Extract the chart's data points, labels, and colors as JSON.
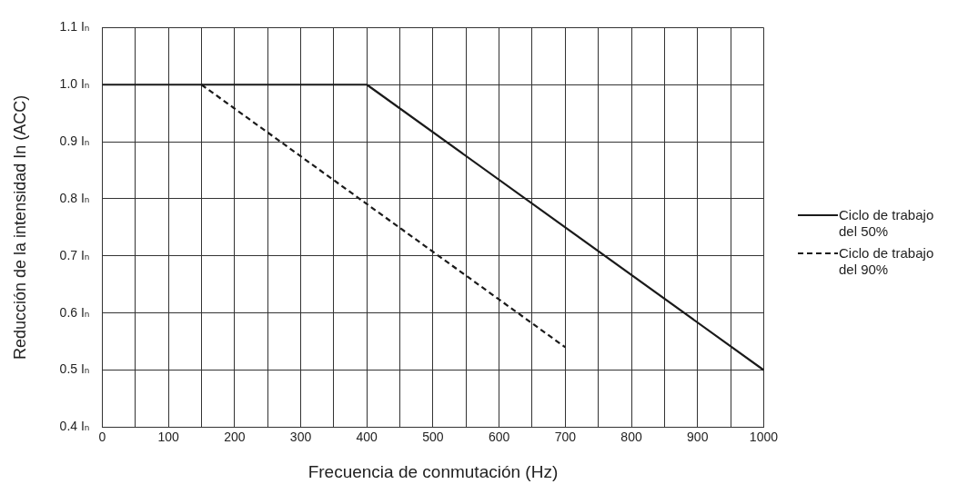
{
  "chart_data": {
    "type": "line",
    "xlabel": "Frecuencia de conmutación (Hz)",
    "ylabel": "Reducción de la intensidad In (ACC)",
    "xlim": [
      0,
      1000
    ],
    "ylim": [
      0.4,
      1.1
    ],
    "xticks": [
      0,
      {
        "value": 50,
        "label": null
      },
      100,
      {
        "value": 150,
        "label": null
      },
      200,
      {
        "value": 250,
        "label": null
      },
      300,
      {
        "value": 350,
        "label": null
      },
      400,
      {
        "value": 450,
        "label": null
      },
      500,
      {
        "value": 550,
        "label": null
      },
      600,
      {
        "value": 650,
        "label": null
      },
      700,
      {
        "value": 750,
        "label": null
      },
      800,
      {
        "value": 850,
        "label": null
      },
      900,
      {
        "value": 950,
        "label": null
      },
      1000
    ],
    "yticks": [
      {
        "value": 0.4,
        "label": "0.4 Iₙ"
      },
      {
        "value": 0.5,
        "label": "0.5 Iₙ"
      },
      {
        "value": 0.6,
        "label": "0.6 Iₙ"
      },
      {
        "value": 0.7,
        "label": "0.7 Iₙ"
      },
      {
        "value": 0.8,
        "label": "0.8 Iₙ"
      },
      {
        "value": 0.9,
        "label": "0.9 Iₙ"
      },
      {
        "value": 1.0,
        "label": "1.0 Iₙ"
      },
      {
        "value": 1.1,
        "label": "1.1 Iₙ"
      }
    ],
    "series": [
      {
        "name": "Ciclo de trabajo del 50%",
        "color": "#1a1a1a",
        "x": [
          0,
          400,
          1000
        ],
        "values": [
          1.0,
          1.0,
          0.5
        ],
        "line_style": "solid"
      },
      {
        "name": "Ciclo de trabajo del 90%",
        "color": "#1a1a1a",
        "x": [
          150,
          700
        ],
        "values": [
          1.0,
          0.54
        ],
        "line_style": "dashed"
      }
    ],
    "grid": true,
    "legend": "right",
    "marker": "none"
  }
}
